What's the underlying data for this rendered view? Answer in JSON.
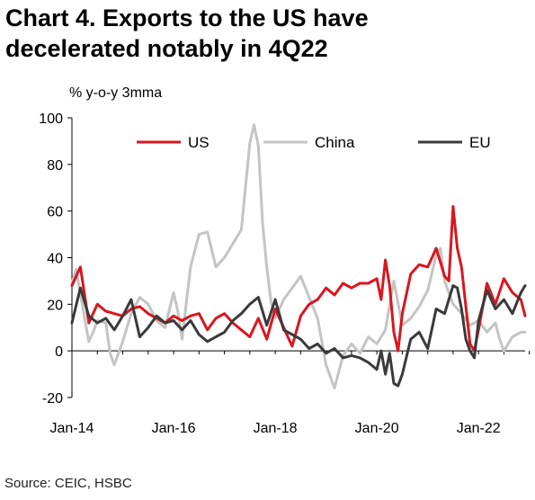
{
  "title_line1": "Chart 4. Exports to the US have",
  "title_line2": "decelerated notably in 4Q22",
  "source": "Source: CEIC, HSBC",
  "chart_data": {
    "type": "line",
    "title": "Chart 4. Exports to the US have decelerated notably in 4Q22",
    "ylabel": "% y-o-y 3mma",
    "xlabel": "",
    "ylim": [
      -20,
      100
    ],
    "yticks": [
      -20,
      0,
      20,
      40,
      60,
      80,
      100
    ],
    "xticks": [
      "Jan-14",
      "Jan-16",
      "Jan-18",
      "Jan-20",
      "Jan-22"
    ],
    "x_range": [
      "2014-01",
      "2022-12"
    ],
    "grid": false,
    "legend_position": "top",
    "series": [
      {
        "name": "US",
        "color": "#d9161f",
        "points": [
          [
            "2014-01",
            28
          ],
          [
            "2014-03",
            36
          ],
          [
            "2014-05",
            12
          ],
          [
            "2014-07",
            20
          ],
          [
            "2014-09",
            17
          ],
          [
            "2014-11",
            16
          ],
          [
            "2015-01",
            15
          ],
          [
            "2015-03",
            18
          ],
          [
            "2015-05",
            19
          ],
          [
            "2015-07",
            16
          ],
          [
            "2015-09",
            14
          ],
          [
            "2015-11",
            12
          ],
          [
            "2016-01",
            15
          ],
          [
            "2016-03",
            13
          ],
          [
            "2016-05",
            15
          ],
          [
            "2016-07",
            16
          ],
          [
            "2016-09",
            9
          ],
          [
            "2016-11",
            14
          ],
          [
            "2017-01",
            16
          ],
          [
            "2017-03",
            12
          ],
          [
            "2017-05",
            9
          ],
          [
            "2017-07",
            6
          ],
          [
            "2017-09",
            14
          ],
          [
            "2017-11",
            5
          ],
          [
            "2018-01",
            18
          ],
          [
            "2018-03",
            10
          ],
          [
            "2018-05",
            2
          ],
          [
            "2018-07",
            15
          ],
          [
            "2018-09",
            20
          ],
          [
            "2018-11",
            22
          ],
          [
            "2019-01",
            27
          ],
          [
            "2019-03",
            24
          ],
          [
            "2019-05",
            29
          ],
          [
            "2019-07",
            27
          ],
          [
            "2019-09",
            29
          ],
          [
            "2019-11",
            29
          ],
          [
            "2020-01",
            31
          ],
          [
            "2020-02",
            22
          ],
          [
            "2020-03",
            39
          ],
          [
            "2020-04",
            28
          ],
          [
            "2020-05",
            8
          ],
          [
            "2020-06",
            0
          ],
          [
            "2020-07",
            16
          ],
          [
            "2020-09",
            33
          ],
          [
            "2020-11",
            37
          ],
          [
            "2021-01",
            36
          ],
          [
            "2021-03",
            44
          ],
          [
            "2021-05",
            32
          ],
          [
            "2021-06",
            30
          ],
          [
            "2021-07",
            62
          ],
          [
            "2021-08",
            44
          ],
          [
            "2021-09",
            36
          ],
          [
            "2021-10",
            19
          ],
          [
            "2021-11",
            3
          ],
          [
            "2021-12",
            0
          ],
          [
            "2022-01",
            9
          ],
          [
            "2022-03",
            29
          ],
          [
            "2022-05",
            20
          ],
          [
            "2022-07",
            31
          ],
          [
            "2022-09",
            25
          ],
          [
            "2022-11",
            22
          ],
          [
            "2022-12",
            15
          ]
        ]
      },
      {
        "name": "China",
        "color": "#c4c4c4",
        "points": [
          [
            "2014-01",
            29
          ],
          [
            "2014-02",
            35
          ],
          [
            "2014-04",
            14
          ],
          [
            "2014-05",
            4
          ],
          [
            "2014-06",
            8
          ],
          [
            "2014-07",
            13
          ],
          [
            "2014-09",
            12
          ],
          [
            "2014-10",
            -1
          ],
          [
            "2014-11",
            -6
          ],
          [
            "2015-01",
            4
          ],
          [
            "2015-03",
            16
          ],
          [
            "2015-05",
            23
          ],
          [
            "2015-07",
            20
          ],
          [
            "2015-09",
            13
          ],
          [
            "2015-11",
            10
          ],
          [
            "2016-01",
            25
          ],
          [
            "2016-02",
            17
          ],
          [
            "2016-03",
            5
          ],
          [
            "2016-05",
            36
          ],
          [
            "2016-07",
            50
          ],
          [
            "2016-09",
            51
          ],
          [
            "2016-11",
            36
          ],
          [
            "2017-01",
            40
          ],
          [
            "2017-03",
            46
          ],
          [
            "2017-05",
            52
          ],
          [
            "2017-07",
            89
          ],
          [
            "2017-08",
            97
          ],
          [
            "2017-09",
            88
          ],
          [
            "2017-10",
            55
          ],
          [
            "2017-11",
            36
          ],
          [
            "2017-12",
            21
          ],
          [
            "2018-01",
            14
          ],
          [
            "2018-03",
            22
          ],
          [
            "2018-05",
            27
          ],
          [
            "2018-07",
            32
          ],
          [
            "2018-09",
            23
          ],
          [
            "2018-11",
            14
          ],
          [
            "2019-01",
            -6
          ],
          [
            "2019-03",
            -16
          ],
          [
            "2019-05",
            -2
          ],
          [
            "2019-07",
            3
          ],
          [
            "2019-09",
            -1
          ],
          [
            "2019-11",
            6
          ],
          [
            "2020-01",
            3
          ],
          [
            "2020-03",
            9
          ],
          [
            "2020-05",
            30
          ],
          [
            "2020-07",
            11
          ],
          [
            "2020-09",
            14
          ],
          [
            "2020-11",
            19
          ],
          [
            "2021-01",
            26
          ],
          [
            "2021-03",
            41
          ],
          [
            "2021-04",
            44
          ],
          [
            "2021-05",
            30
          ],
          [
            "2021-07",
            20
          ],
          [
            "2021-09",
            16
          ],
          [
            "2021-11",
            11
          ],
          [
            "2022-01",
            13
          ],
          [
            "2022-03",
            8
          ],
          [
            "2022-05",
            12
          ],
          [
            "2022-06",
            5
          ],
          [
            "2022-07",
            0
          ],
          [
            "2022-09",
            6
          ],
          [
            "2022-11",
            8
          ],
          [
            "2022-12",
            8
          ]
        ]
      },
      {
        "name": "EU",
        "color": "#3a3a3a",
        "points": [
          [
            "2014-01",
            12
          ],
          [
            "2014-03",
            27
          ],
          [
            "2014-05",
            15
          ],
          [
            "2014-07",
            12
          ],
          [
            "2014-09",
            14
          ],
          [
            "2014-11",
            9
          ],
          [
            "2015-01",
            15
          ],
          [
            "2015-03",
            22
          ],
          [
            "2015-05",
            6
          ],
          [
            "2015-07",
            10
          ],
          [
            "2015-09",
            15
          ],
          [
            "2015-11",
            12
          ],
          [
            "2016-01",
            13
          ],
          [
            "2016-03",
            9
          ],
          [
            "2016-05",
            13
          ],
          [
            "2016-07",
            7
          ],
          [
            "2016-09",
            4
          ],
          [
            "2016-11",
            6
          ],
          [
            "2017-01",
            8
          ],
          [
            "2017-03",
            13
          ],
          [
            "2017-05",
            16
          ],
          [
            "2017-07",
            20
          ],
          [
            "2017-09",
            23
          ],
          [
            "2017-11",
            11
          ],
          [
            "2018-01",
            22
          ],
          [
            "2018-03",
            9
          ],
          [
            "2018-05",
            7
          ],
          [
            "2018-07",
            5
          ],
          [
            "2018-09",
            1
          ],
          [
            "2018-11",
            3
          ],
          [
            "2019-01",
            -1
          ],
          [
            "2019-03",
            1
          ],
          [
            "2019-05",
            -3
          ],
          [
            "2019-07",
            -2
          ],
          [
            "2019-09",
            -3
          ],
          [
            "2019-11",
            -5
          ],
          [
            "2020-01",
            -8
          ],
          [
            "2020-02",
            0
          ],
          [
            "2020-03",
            -10
          ],
          [
            "2020-04",
            -1
          ],
          [
            "2020-05",
            -14
          ],
          [
            "2020-06",
            -15
          ],
          [
            "2020-07",
            -10
          ],
          [
            "2020-09",
            5
          ],
          [
            "2020-11",
            8
          ],
          [
            "2021-01",
            1
          ],
          [
            "2021-03",
            18
          ],
          [
            "2021-05",
            16
          ],
          [
            "2021-06",
            22
          ],
          [
            "2021-07",
            28
          ],
          [
            "2021-08",
            27
          ],
          [
            "2021-09",
            18
          ],
          [
            "2021-10",
            5
          ],
          [
            "2021-11",
            0
          ],
          [
            "2021-12",
            -3
          ],
          [
            "2022-01",
            13
          ],
          [
            "2022-03",
            26
          ],
          [
            "2022-05",
            18
          ],
          [
            "2022-07",
            22
          ],
          [
            "2022-09",
            16
          ],
          [
            "2022-11",
            25
          ],
          [
            "2022-12",
            28
          ]
        ]
      }
    ]
  }
}
